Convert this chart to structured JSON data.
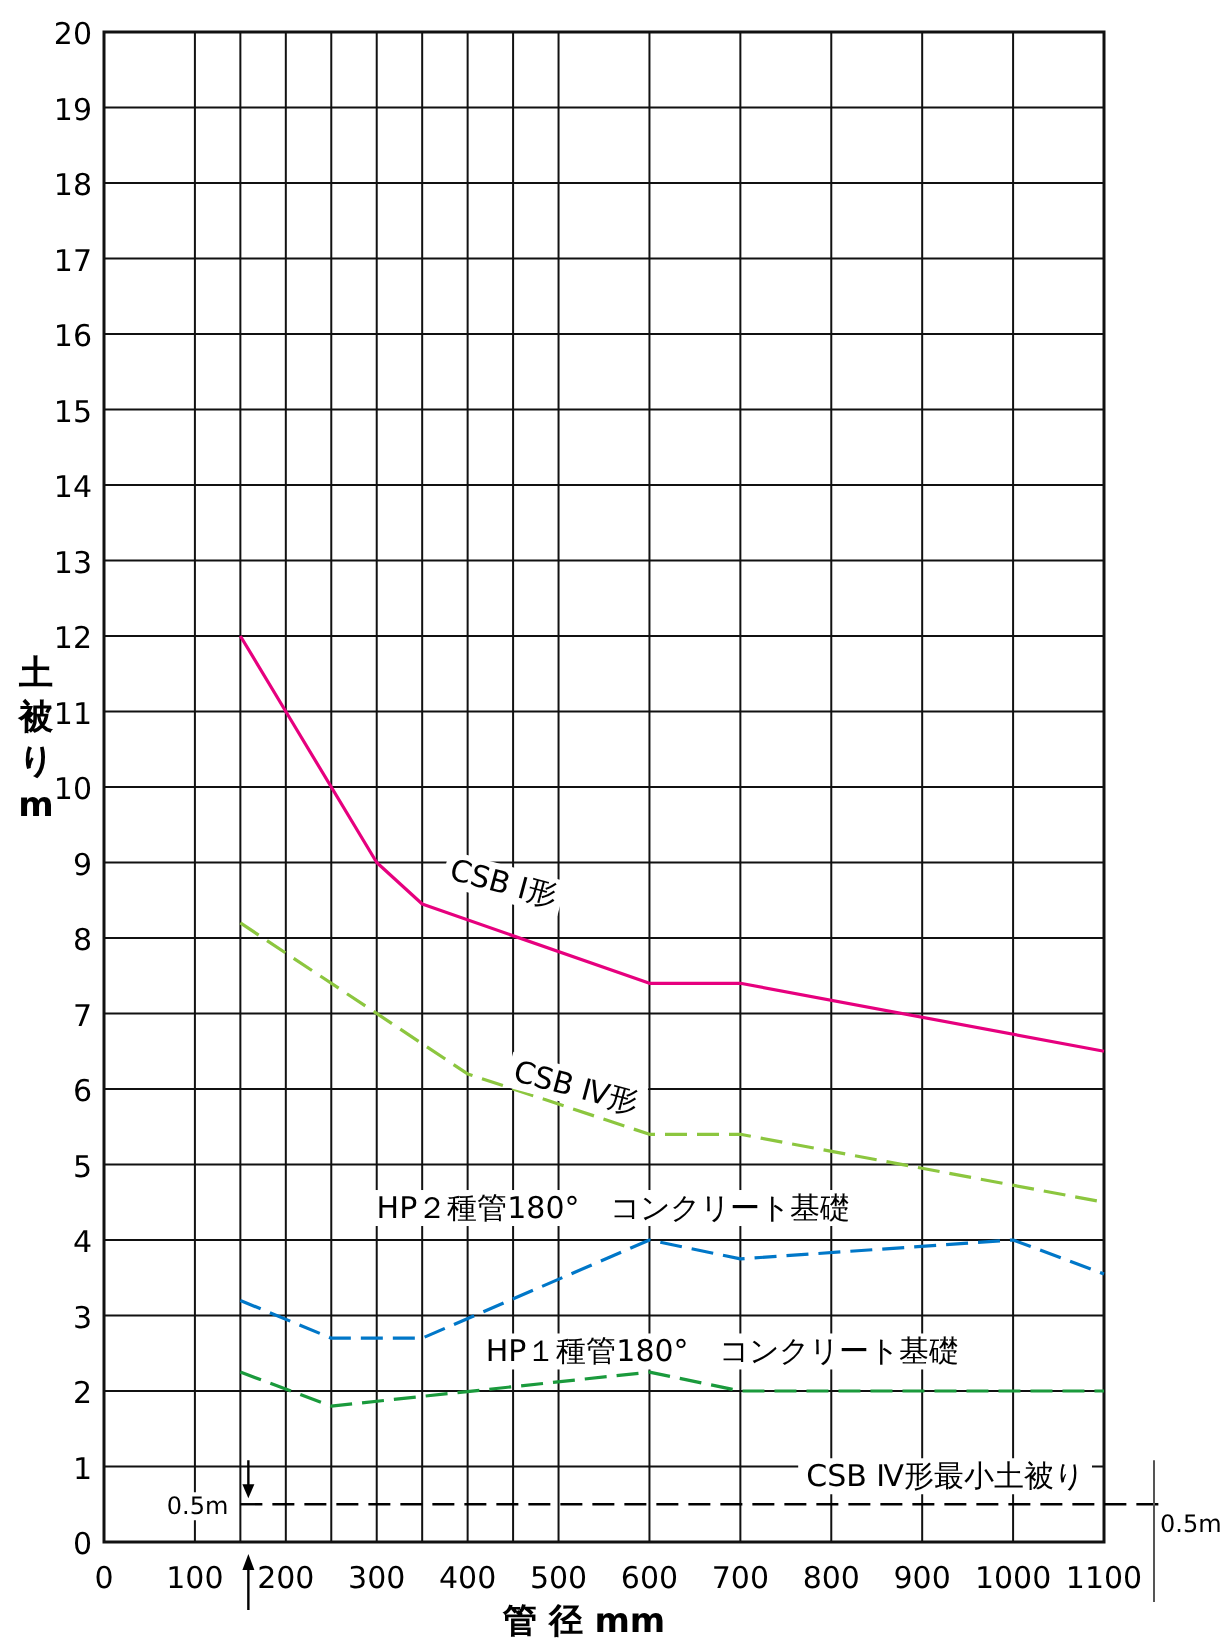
{
  "chart_data": {
    "type": "line",
    "xlabel": "管 径 mm",
    "ylabel": "土被りm",
    "series": [
      {
        "name": "CSB Ⅰ形",
        "color": "#e6007e",
        "line_style": "solid",
        "x": [
          150,
          200,
          300,
          350,
          600,
          700,
          1100
        ],
        "values": [
          12,
          11,
          9,
          8.45,
          7.4,
          7.4,
          6.5
        ]
      },
      {
        "name": "CSB Ⅳ形",
        "color": "#8cc63f",
        "line_style": "dashed",
        "x": [
          150,
          400,
          600,
          700,
          1100
        ],
        "values": [
          8.2,
          6.2,
          5.4,
          5.4,
          4.5
        ]
      },
      {
        "name": "HP２種管180°　コンクリート基礎",
        "color": "#0077c8",
        "line_style": "dashed",
        "x": [
          150,
          250,
          350,
          600,
          700,
          1000,
          1100
        ],
        "values": [
          3.2,
          2.7,
          2.7,
          4.0,
          3.75,
          4.0,
          3.55
        ]
      },
      {
        "name": "HP１種管180°　コンクリート基礎",
        "color": "#1a9a3c",
        "line_style": "dashed",
        "x": [
          150,
          250,
          600,
          700,
          1100
        ],
        "values": [
          2.25,
          1.8,
          2.25,
          2.0,
          2.0
        ]
      }
    ],
    "xlim": [
      0,
      1100
    ],
    "ylim": [
      0,
      20
    ],
    "xticks": [
      0,
      100,
      {
        "value": 150,
        "label": null
      },
      200,
      {
        "value": 250,
        "label": null
      },
      300,
      {
        "value": 350,
        "label": null
      },
      400,
      {
        "value": 450,
        "label": null
      },
      500,
      600,
      700,
      800,
      900,
      1000,
      1100
    ],
    "yticks": [
      0,
      1,
      2,
      3,
      4,
      5,
      6,
      7,
      8,
      9,
      10,
      11,
      12,
      13,
      14,
      15,
      16,
      17,
      18,
      19,
      20
    ],
    "grid": true,
    "marker": "none",
    "ref_lines": [
      {
        "axis": "y",
        "value": 0.5,
        "label": "CSB Ⅳ形最小土被り",
        "color": "#000000",
        "line_style": "dashed"
      }
    ],
    "annotations": [
      "0.5m",
      "0.5m"
    ]
  }
}
